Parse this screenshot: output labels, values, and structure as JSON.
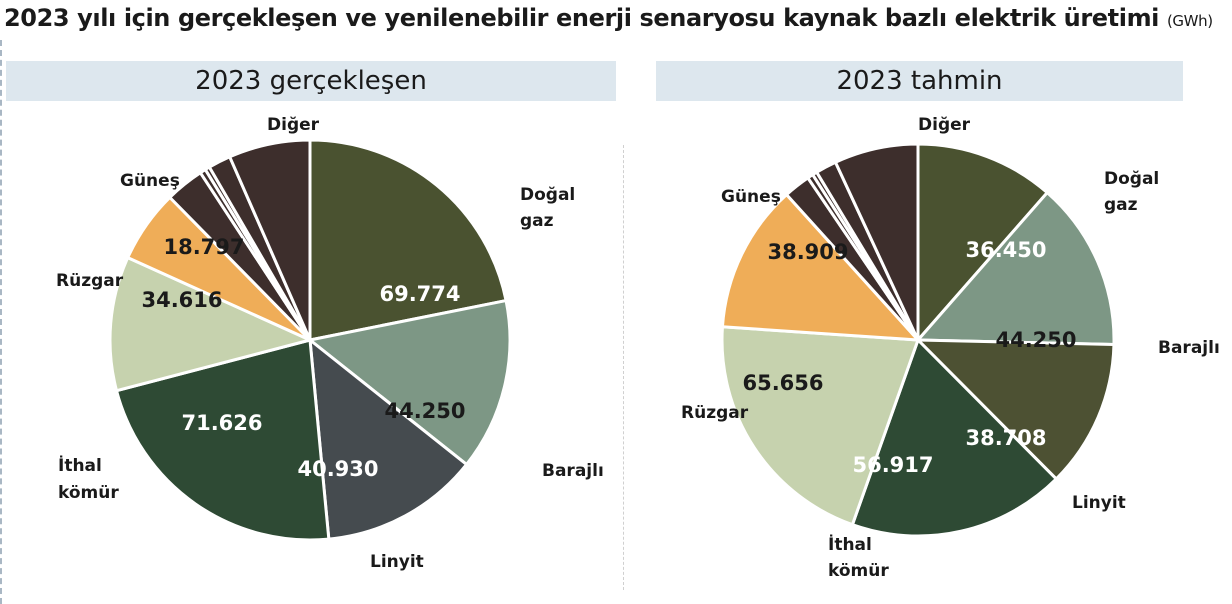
{
  "title": "2023 yılı için gerçekleşen ve yenilenebilir enerji senaryosu kaynak bazlı elektrik üretimi",
  "unit": "(GWh)",
  "colors": {
    "dogal_gaz": "#4a5230",
    "barajli": "#7d9785",
    "linyit": "#454b4f",
    "ithal_komur": "#2e4a34",
    "ruzgar": "#c6d2ae",
    "gunes": "#efad58",
    "diger": "#3d2e2c",
    "linyit_alt": "#4d5133",
    "panel_bg": "#dde7ee"
  },
  "chart_data": [
    {
      "type": "pie",
      "title": "2023 gerçekleşen",
      "slices": [
        {
          "label": "Doğal gaz",
          "value": 69774,
          "value_label": "69.774",
          "color": "#4a5230"
        },
        {
          "label": "Barajlı",
          "value": 44250,
          "value_label": "44.250",
          "color": "#7d9785"
        },
        {
          "label": "Linyit",
          "value": 40930,
          "value_label": "40.930",
          "color": "#454b4f"
        },
        {
          "label": "İthal kömür",
          "value": 71626,
          "value_label": "71.626",
          "color": "#2e4a34"
        },
        {
          "label": "Rüzgar",
          "value": 34616,
          "value_label": "34.616",
          "color": "#c6d2ae"
        },
        {
          "label": "Güneş",
          "value": 18797,
          "value_label": "18.797",
          "color": "#efad58"
        },
        {
          "label": "Diğer",
          "value": 10000,
          "value_label": "",
          "color": "#3d2e2c"
        },
        {
          "label": "",
          "value": 1500,
          "value_label": "",
          "color": "#3d2e2c"
        },
        {
          "label": "",
          "value": 1200,
          "value_label": "",
          "color": "#3d2e2c"
        },
        {
          "label": "",
          "value": 5800,
          "value_label": "",
          "color": "#3d2e2c"
        },
        {
          "label": "",
          "value": 21000,
          "value_label": "",
          "color": "#3d2e2c"
        }
      ]
    },
    {
      "type": "pie",
      "title": "2023 tahmin",
      "slices": [
        {
          "label": "Doğal gaz",
          "value": 36450,
          "value_label": "36.450",
          "color": "#4a5230"
        },
        {
          "label": "Barajlı",
          "value": 44250,
          "value_label": "44.250",
          "color": "#7d9785"
        },
        {
          "label": "Linyit",
          "value": 38708,
          "value_label": "38.708",
          "color": "#4d5133"
        },
        {
          "label": "İthal kömür",
          "value": 56917,
          "value_label": "56.917",
          "color": "#2e4a34"
        },
        {
          "label": "Rüzgar",
          "value": 65656,
          "value_label": "65.656",
          "color": "#c6d2ae"
        },
        {
          "label": "Güneş",
          "value": 38909,
          "value_label": "38.909",
          "color": "#efad58"
        },
        {
          "label": "Diğer",
          "value": 7000,
          "value_label": "",
          "color": "#3d2e2c"
        },
        {
          "label": "",
          "value": 1500,
          "value_label": "",
          "color": "#3d2e2c"
        },
        {
          "label": "",
          "value": 1200,
          "value_label": "",
          "color": "#3d2e2c"
        },
        {
          "label": "",
          "value": 5500,
          "value_label": "",
          "color": "#3d2e2c"
        },
        {
          "label": "",
          "value": 22000,
          "value_label": "",
          "color": "#3d2e2c"
        }
      ]
    }
  ]
}
